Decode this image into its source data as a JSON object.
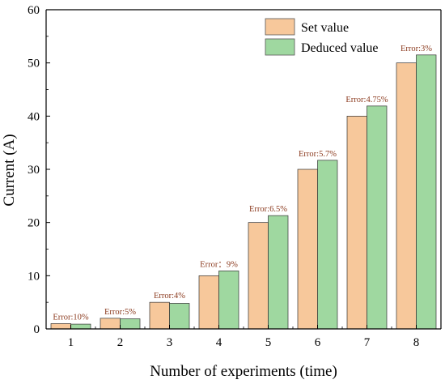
{
  "chart_data": {
    "type": "bar",
    "xlabel": "Number of experiments (time)",
    "ylabel": "Current (A)",
    "categories": [
      "1",
      "2",
      "3",
      "4",
      "5",
      "6",
      "7",
      "8"
    ],
    "ylim": [
      0,
      60
    ],
    "yticks": [
      "0",
      "10",
      "20",
      "30",
      "40",
      "50",
      "60"
    ],
    "grid": false,
    "legend_position": "top-right",
    "series": [
      {
        "name": "Set value",
        "color": "#f7c89b",
        "values": [
          1,
          2,
          5,
          10,
          20,
          30,
          40,
          50
        ]
      },
      {
        "name": "Deduced value",
        "color": "#9fd8a0",
        "values": [
          0.9,
          1.9,
          4.8,
          10.9,
          21.3,
          31.7,
          41.9,
          51.5
        ]
      }
    ],
    "annotations": [
      "Error:10%",
      "Error:5%",
      "Error:4%",
      "Error：9%",
      "Error:6.5%",
      "Error:5.7%",
      "Error:4.75%",
      "Error:3%"
    ]
  }
}
